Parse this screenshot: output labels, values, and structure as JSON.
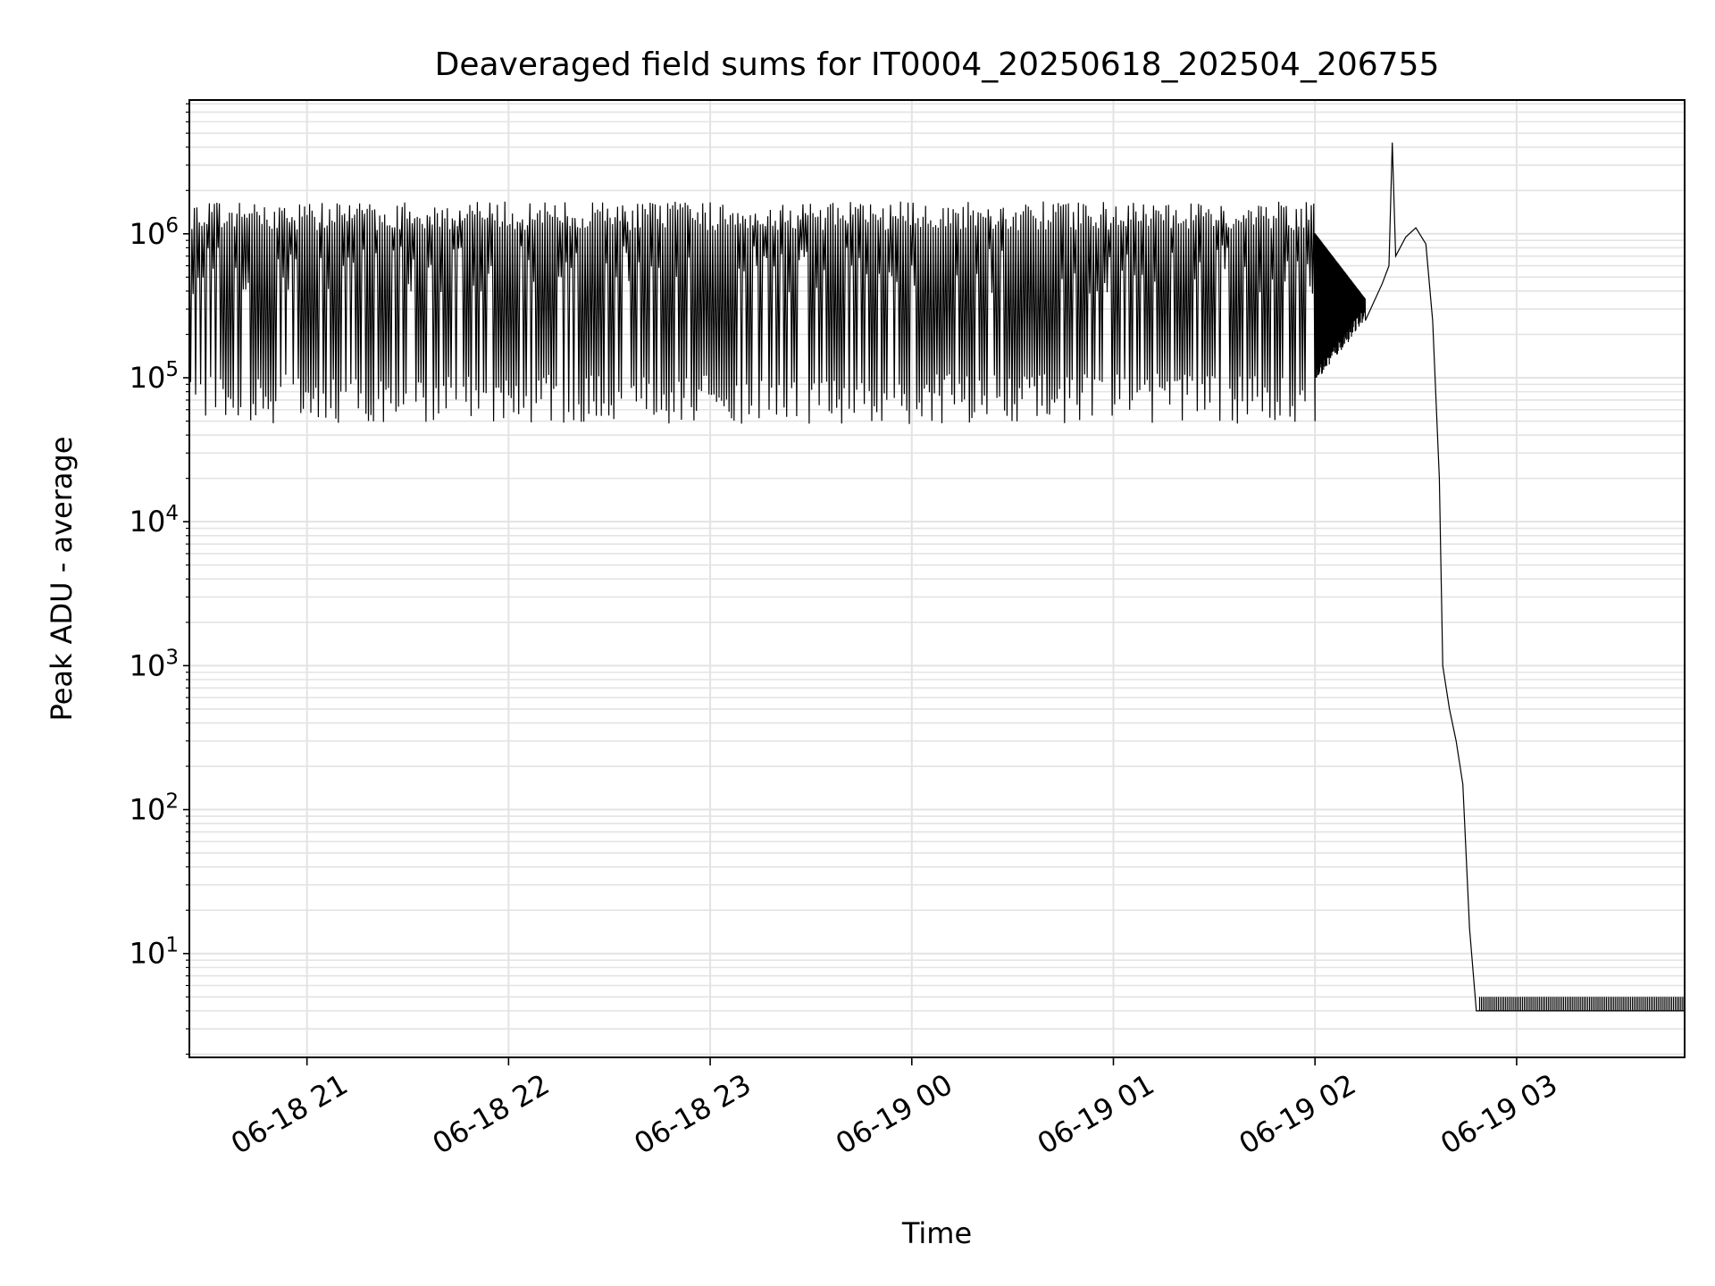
{
  "chart_data": {
    "type": "line",
    "title": "Deaveraged field sums for IT0004_20250618_202504_206755",
    "xlabel": "Time",
    "ylabel": "Peak ADU - average",
    "y_scale": "log",
    "grid": true,
    "x_tick_labels": [
      "06-18 21",
      "06-18 22",
      "06-18 23",
      "06-19 00",
      "06-19 01",
      "06-19 02",
      "06-19 03"
    ],
    "y_tick_labels": [
      {
        "base": "10",
        "exp": "1"
      },
      {
        "base": "10",
        "exp": "2"
      },
      {
        "base": "10",
        "exp": "3"
      },
      {
        "base": "10",
        "exp": "4"
      },
      {
        "base": "10",
        "exp": "5"
      },
      {
        "base": "10",
        "exp": "6"
      }
    ],
    "xlim": [
      "2025-06-18 20:25",
      "2025-06-19 03:50"
    ],
    "ylim": [
      1.9,
      8500000
    ],
    "series": [
      {
        "color": "#000000",
        "oscillation": {
          "start": "2025-06-18 20:25",
          "end": "2025-06-19 02:00",
          "high": 1500000,
          "low": 60000
        },
        "x": [
          "2025-06-19 02:00",
          "2025-06-19 02:15",
          "2025-06-19 02:20",
          "2025-06-19 02:22",
          "2025-06-19 02:23",
          "2025-06-19 02:24",
          "2025-06-19 02:27",
          "2025-06-19 02:30",
          "2025-06-19 02:33",
          "2025-06-19 02:35",
          "2025-06-19 02:37",
          "2025-06-19 02:38",
          "2025-06-19 02:40",
          "2025-06-19 02:42",
          "2025-06-19 02:44",
          "2025-06-19 02:46",
          "2025-06-19 02:48",
          "2025-06-19 02:49",
          "2025-06-19 03:50"
        ],
        "y": [
          90000,
          250000,
          450000,
          600000,
          4300000,
          700000,
          950000,
          1100000,
          850000,
          250000,
          20000,
          1000,
          500,
          300,
          150,
          15,
          4,
          4,
          4
        ]
      }
    ]
  }
}
